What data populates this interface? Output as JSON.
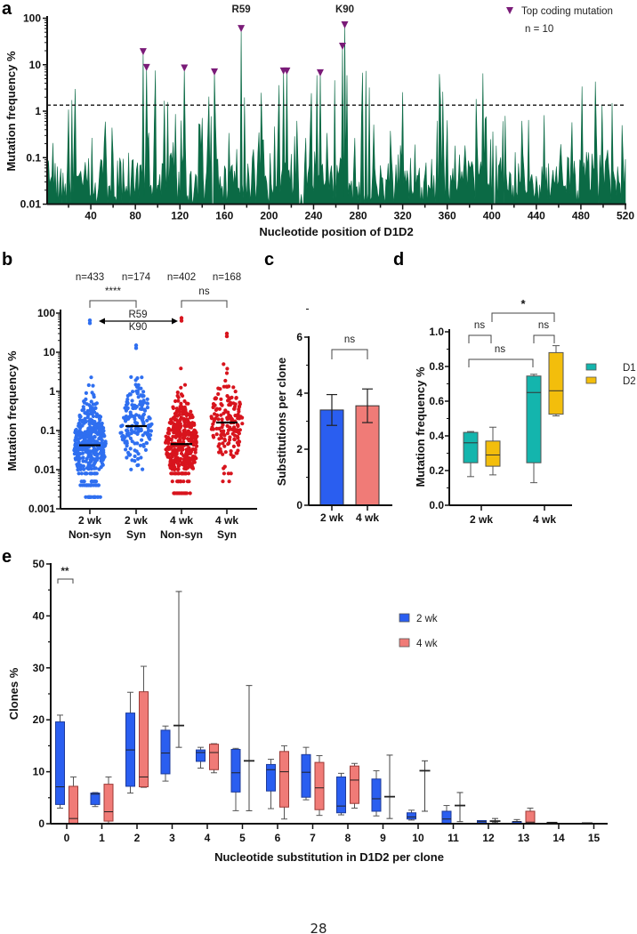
{
  "page_number": "28",
  "panel_letters": [
    "a",
    "b",
    "c",
    "d",
    "e"
  ],
  "chart_data": [
    {
      "panel": "a",
      "type": "area",
      "title": "",
      "xlabel": "Nucleotide position of D1D2",
      "ylabel": "Mutation frequency %",
      "yscale": "log",
      "ylim": [
        0.01,
        100
      ],
      "xlim": [
        0,
        520
      ],
      "xticks": [
        "40",
        "80",
        "120",
        "160",
        "200",
        "240",
        "280",
        "320",
        "360",
        "400",
        "440",
        "480",
        "520"
      ],
      "yticks": [
        "0.01",
        "0.1",
        "1",
        "10",
        "100"
      ],
      "threshold": 1.35,
      "color": "#0b6a45",
      "marker_color": "#7a1b78",
      "legend": {
        "label": "Top coding mutation",
        "note": "n = 10",
        "placement": "top-right"
      },
      "marked": [
        {
          "pos": 87,
          "value": 19,
          "label": ""
        },
        {
          "pos": 90,
          "value": 8.7,
          "label": ""
        },
        {
          "pos": 124,
          "value": 8.5,
          "label": ""
        },
        {
          "pos": 151,
          "value": 7,
          "label": ""
        },
        {
          "pos": 175,
          "value": 60,
          "label": "R59"
        },
        {
          "pos": 213,
          "value": 7.3,
          "label": ""
        },
        {
          "pos": 216,
          "value": 7.3,
          "label": ""
        },
        {
          "pos": 246,
          "value": 6.7,
          "label": ""
        },
        {
          "pos": 266,
          "value": 25,
          "label": ""
        },
        {
          "pos": 268,
          "value": 72,
          "label": "K90"
        }
      ]
    },
    {
      "panel": "b",
      "type": "scatter",
      "ylabel": "Mutation frequency %",
      "yscale": "log",
      "ylim": [
        0.001,
        100
      ],
      "yticks": [
        "0.001",
        "0.01",
        "0.1",
        "1",
        "10",
        "100"
      ],
      "groups": [
        {
          "line1": "2 wk",
          "line2": "Non-syn",
          "n_label": "n=433",
          "n": 433,
          "median": 0.042,
          "min": 0.002,
          "max": 65,
          "color": "#2f6ff0"
        },
        {
          "line1": "2 wk",
          "line2": "Syn",
          "n_label": "n=174",
          "n": 174,
          "median": 0.13,
          "min": 0.004,
          "max": 15,
          "color": "#2f6ff0"
        },
        {
          "line1": "4 wk",
          "line2": "Non-syn",
          "n_label": "n=402",
          "n": 402,
          "median": 0.045,
          "min": 0.0025,
          "max": 75,
          "color": "#d8141d"
        },
        {
          "line1": "4 wk",
          "line2": "Syn",
          "n_label": "n=168",
          "n": 168,
          "median": 0.16,
          "min": 0.0025,
          "max": 30,
          "color": "#d8141d"
        }
      ],
      "significance": [
        {
          "groups": [
            0,
            1
          ],
          "label": "****"
        },
        {
          "groups": [
            2,
            3
          ],
          "label": "ns"
        }
      ],
      "arrow_annotation": {
        "line1": "R59",
        "line2": "K90"
      }
    },
    {
      "panel": "c",
      "type": "bar",
      "ylabel": "Substitutions per clone",
      "ylim": [
        0,
        6
      ],
      "yticks": [
        "0",
        "2",
        "4",
        "6"
      ],
      "categories": [
        "2 wk",
        "4 wk"
      ],
      "values": [
        3.4,
        3.55
      ],
      "error_low": [
        2.85,
        2.95
      ],
      "error_high": [
        3.95,
        4.15
      ],
      "colors": [
        "#2a5ef0",
        "#f07b77"
      ],
      "significance": {
        "label": "ns"
      }
    },
    {
      "panel": "d",
      "type": "box",
      "ylabel": "Mutation frequency %",
      "ylim": [
        0,
        1.0
      ],
      "yticks": [
        "0.0",
        "0.2",
        "0.4",
        "0.6",
        "0.8",
        "1.0"
      ],
      "categories": [
        "2 wk",
        "4 wk"
      ],
      "series": [
        {
          "name": "D1",
          "color": "#14b5ad",
          "boxes": [
            [
              0.165,
              0.245,
              0.36,
              0.42,
              0.425
            ],
            [
              0.13,
              0.245,
              0.65,
              0.745,
              0.755
            ]
          ]
        },
        {
          "name": "D2",
          "color": "#f3be0c",
          "boxes": [
            [
              0.175,
              0.225,
              0.29,
              0.37,
              0.45
            ],
            [
              0.515,
              0.525,
              0.66,
              0.88,
              0.92
            ]
          ]
        }
      ],
      "significance": [
        {
          "label": "ns",
          "between": "2 wk D1 vs 2 wk D2"
        },
        {
          "label": "ns",
          "between": "4 wk D1 vs 4 wk D2"
        },
        {
          "label": "ns",
          "between": "2 wk D1 vs 4 wk D1"
        },
        {
          "label": "*",
          "between": "2 wk D2 vs 4 wk D2"
        }
      ],
      "legend_placement": "right"
    },
    {
      "panel": "e",
      "type": "box",
      "xlabel": "Nucleotide substitution in D1D2 per clone",
      "ylabel": "Clones %",
      "ylim": [
        0,
        50
      ],
      "yticks": [
        "0",
        "10",
        "20",
        "30",
        "40",
        "50"
      ],
      "categories": [
        "0",
        "1",
        "2",
        "3",
        "4",
        "5",
        "6",
        "7",
        "8",
        "9",
        "10",
        "11",
        "12",
        "13",
        "14",
        "15"
      ],
      "series": [
        {
          "name": "2 wk",
          "color": "#2a5ef0",
          "boxes": [
            [
              3.0,
              3.7,
              7.1,
              19.6,
              20.9
            ],
            [
              3.3,
              3.7,
              5.7,
              5.9,
              6.0
            ],
            [
              5.9,
              7.2,
              14.2,
              21.3,
              25.3
            ],
            [
              8.2,
              9.6,
              13.6,
              18.0,
              18.8
            ],
            [
              10.7,
              12.0,
              13.7,
              14.2,
              14.7
            ],
            [
              2.5,
              6.1,
              9.8,
              14.3,
              14.5
            ],
            [
              2.9,
              6.3,
              10.4,
              11.4,
              12.4
            ],
            [
              4.6,
              5.1,
              9.9,
              13.3,
              14.7
            ],
            [
              1.7,
              2.1,
              3.4,
              9.0,
              9.7
            ],
            [
              1.5,
              2.4,
              4.8,
              8.6,
              10.2
            ],
            [
              0.7,
              0.9,
              1.3,
              2.1,
              2.6
            ],
            [
              0,
              0,
              0.9,
              2.4,
              3.5
            ],
            [
              0,
              0,
              0.4,
              0.6,
              0.6
            ],
            [
              0,
              0,
              0.4,
              0.4,
              0.8
            ],
            [
              0.2,
              0.2,
              0.2,
              0.2,
              0.2
            ],
            [
              0.1,
              0.1,
              0.1,
              0.1,
              0.1
            ]
          ]
        },
        {
          "name": "4 wk",
          "color": "#f07b77",
          "boxes": [
            [
              0,
              0,
              1.0,
              7.2,
              9.0
            ],
            [
              0.1,
              0.5,
              2.3,
              7.6,
              9.0
            ],
            [
              7.0,
              7.1,
              9.0,
              25.4,
              30.3
            ],
            [
              14.7,
              18.9,
              18.9,
              18.9,
              44.7
            ],
            [
              9.8,
              10.4,
              13.7,
              15.3,
              15.4
            ],
            [
              2.5,
              12.1,
              12.1,
              12.1,
              26.6
            ],
            [
              0.9,
              3.2,
              10.0,
              13.9,
              15.0
            ],
            [
              1.6,
              2.7,
              6.9,
              11.8,
              13.1
            ],
            [
              3.0,
              3.9,
              8.4,
              11.1,
              11.6
            ],
            [
              1.0,
              5.2,
              5.2,
              5.2,
              13.2
            ],
            [
              2.4,
              10.2,
              10.2,
              10.2,
              12.1
            ],
            [
              0.4,
              3.5,
              3.5,
              3.5,
              6.0
            ],
            [
              0.2,
              0.5,
              0.5,
              0.5,
              1.0
            ],
            [
              0,
              0,
              0.3,
              2.4,
              3.0
            ],
            [
              0,
              0,
              0,
              0,
              0
            ],
            [
              0,
              0,
              0,
              0,
              0
            ]
          ]
        }
      ],
      "significance": [
        {
          "category": "0",
          "label": "**"
        }
      ],
      "legend_placement": "right"
    }
  ]
}
